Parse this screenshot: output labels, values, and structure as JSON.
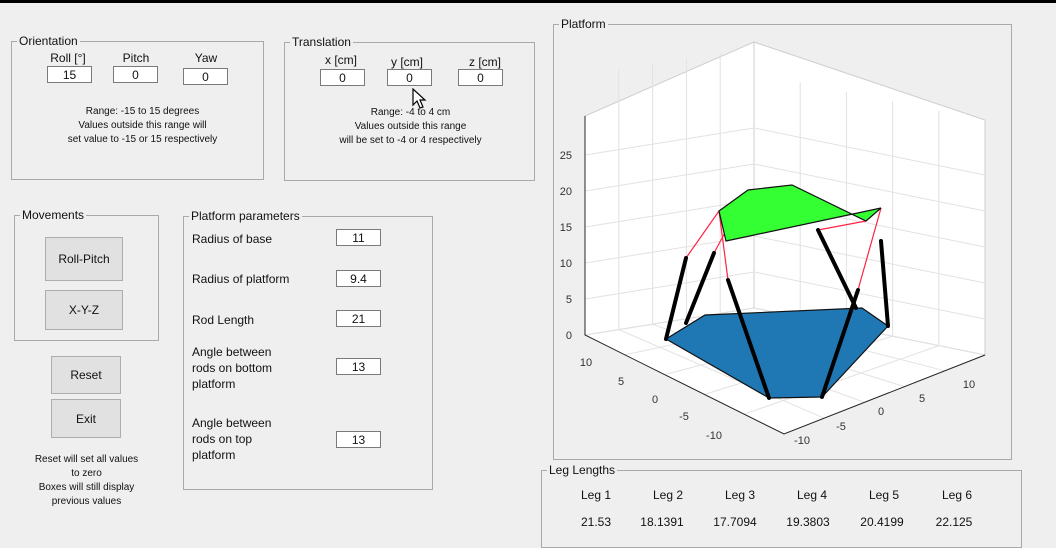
{
  "orientation": {
    "legend": "Orientation",
    "roll_label": "Roll [°]",
    "pitch_label": "Pitch",
    "yaw_label": "Yaw",
    "roll_value": "15",
    "pitch_value": "0",
    "yaw_value": "0",
    "note_line1": "Range: -15  to 15 degrees",
    "note_line2": "Values outside this range will",
    "note_line3": "set value to -15 or 15 respectively"
  },
  "translation": {
    "legend": "Translation",
    "x_label": "x [cm]",
    "y_label": "y [cm]",
    "z_label": "z [cm]",
    "x_value": "0",
    "y_value": "0",
    "z_value": "0",
    "note_line1": "Range: -4 to 4 cm",
    "note_line2": "Values outside this range",
    "note_line3": "will be set to -4 or 4 respectively"
  },
  "movements": {
    "legend": "Movements",
    "roll_pitch_label": "Roll-Pitch",
    "xyz_label": "X-Y-Z"
  },
  "actions": {
    "reset_label": "Reset",
    "exit_label": "Exit",
    "note_line1": "Reset will set all values",
    "note_line2": "to zero",
    "note_line3": "Boxes will still display",
    "note_line4": "previous values"
  },
  "platform_parameters": {
    "legend": "Platform parameters",
    "radius_base_label": "Radius of base",
    "radius_base_value": "11",
    "radius_platform_label": "Radius of platform",
    "radius_platform_value": "9.4",
    "rod_length_label": "Rod Length",
    "rod_length_value": "21",
    "angle_bottom_line1": "Angle between",
    "angle_bottom_line2": "rods on bottom",
    "angle_bottom_line3": "platform",
    "angle_bottom_value": "13",
    "angle_top_line1": "Angle between",
    "angle_top_line2": "rods on top",
    "angle_top_line3": "platform",
    "angle_top_value": "13"
  },
  "platform_plot": {
    "legend": "Platform",
    "z_ticks": [
      "0",
      "5",
      "10",
      "15",
      "20",
      "25"
    ],
    "left_ticks": [
      "10",
      "5",
      "0",
      "-5",
      "-10"
    ],
    "right_ticks": [
      "-10",
      "-5",
      "0",
      "5",
      "10"
    ],
    "colors": {
      "base": "#1f77b4",
      "top": "#33ff33",
      "rods": "#000000",
      "wire": "#ff2244"
    }
  },
  "leg_lengths": {
    "legend": "Leg Lengths",
    "headers": [
      "Leg 1",
      "Leg 2",
      "Leg 3",
      "Leg 4",
      "Leg 5",
      "Leg 6"
    ],
    "values": [
      "21.53",
      "18.1391",
      "17.7094",
      "19.3803",
      "20.4199",
      "22.125"
    ]
  }
}
